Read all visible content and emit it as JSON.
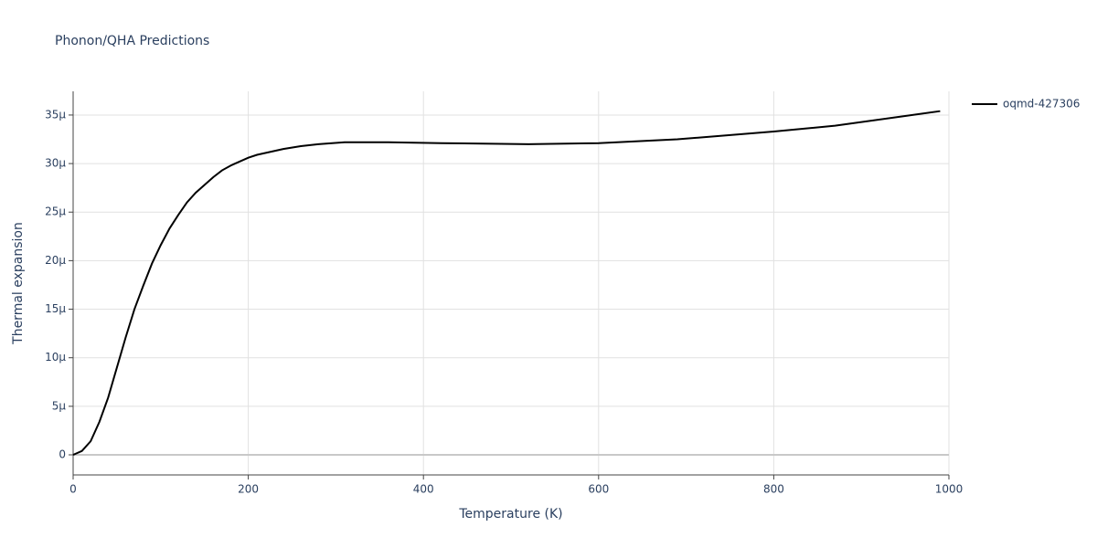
{
  "chart_data": {
    "type": "line",
    "title": "Phonon/QHA Predictions",
    "x_label": "Temperature (K)",
    "y_label": "Thermal expansion",
    "x": [
      0,
      10,
      20,
      30,
      40,
      50,
      60,
      70,
      80,
      90,
      100,
      110,
      120,
      130,
      140,
      150,
      160,
      170,
      180,
      190,
      200,
      210,
      220,
      240,
      260,
      280,
      310,
      360,
      420,
      520,
      600,
      690,
      800,
      870,
      990
    ],
    "series": [
      {
        "name": "oqmd-427306",
        "color": "#000000",
        "values": [
          0,
          4e-07,
          1.4e-06,
          3.4e-06,
          5.9e-06,
          9e-06,
          1.21e-05,
          1.5e-05,
          1.74e-05,
          1.97e-05,
          2.16e-05,
          2.33e-05,
          2.47e-05,
          2.6e-05,
          2.7e-05,
          2.78e-05,
          2.86e-05,
          2.93e-05,
          2.98e-05,
          3.02e-05,
          3.06e-05,
          3.09e-05,
          3.11e-05,
          3.15e-05,
          3.18e-05,
          3.2e-05,
          3.22e-05,
          3.22e-05,
          3.21e-05,
          3.2e-05,
          3.21e-05,
          3.25e-05,
          3.33e-05,
          3.39e-05,
          3.54e-05
        ]
      }
    ],
    "xlim": [
      0,
      1000
    ],
    "xticks": [
      0,
      200,
      400,
      600,
      800,
      1000
    ],
    "ylim": [
      -2.07e-06,
      3.744e-05
    ],
    "yticks": [
      0,
      {
        "value": 5e-06,
        "label": "5μ"
      },
      {
        "value": 1e-05,
        "label": "10μ"
      },
      {
        "value": 1.5e-05,
        "label": "15μ"
      },
      {
        "value": 2e-05,
        "label": "20μ"
      },
      {
        "value": 2.5e-05,
        "label": "25μ"
      },
      {
        "value": 3e-05,
        "label": "30μ"
      },
      {
        "value": 3.5e-05,
        "label": "35μ"
      }
    ],
    "grid": true,
    "legend": "top-right"
  }
}
